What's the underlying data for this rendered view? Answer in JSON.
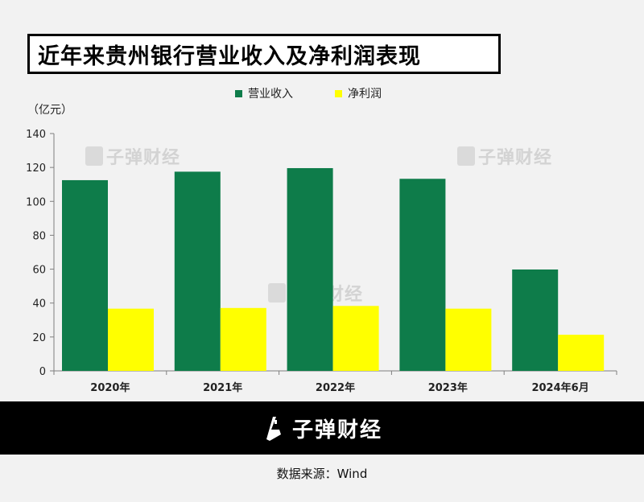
{
  "title": "近年来贵州银行营业收入及净利润表现",
  "unit": "（亿元）",
  "watermark": "子弹财经",
  "brand": "子弹财经",
  "source": "数据来源：Wind",
  "colors": {
    "revenue": "#0e7c4a",
    "profit": "#ffff00",
    "axis": "#7f7f7f",
    "footer": "#000000"
  },
  "chart_data": {
    "type": "bar",
    "categories": [
      "2020年",
      "2021年",
      "2022年",
      "2023年",
      "2024年6月"
    ],
    "series": [
      {
        "name": "营业收入",
        "values": [
          112.5,
          117.5,
          119.6,
          113.3,
          59.8
        ]
      },
      {
        "name": "净利润",
        "values": [
          36.7,
          37.1,
          38.3,
          36.7,
          21.3
        ]
      }
    ],
    "ylim": [
      0,
      140
    ],
    "yticks": [
      0,
      20,
      40,
      60,
      80,
      100,
      120,
      140
    ],
    "legend_position": "top"
  }
}
